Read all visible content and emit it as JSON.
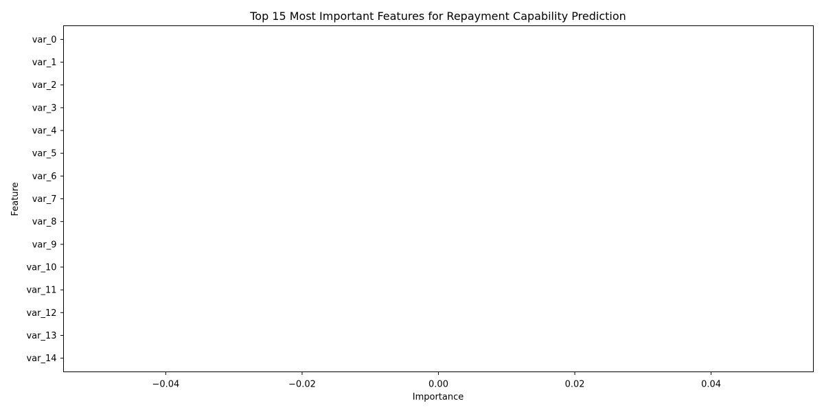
{
  "chart_data": {
    "type": "bar",
    "orientation": "horizontal",
    "title": "Top 15 Most Important Features for Repayment Capability Prediction",
    "xlabel": "Importance",
    "ylabel": "Feature",
    "categories": [
      "var_0",
      "var_1",
      "var_2",
      "var_3",
      "var_4",
      "var_5",
      "var_6",
      "var_7",
      "var_8",
      "var_9",
      "var_10",
      "var_11",
      "var_12",
      "var_13",
      "var_14"
    ],
    "values": [
      0,
      0,
      0,
      0,
      0,
      0,
      0,
      0,
      0,
      0,
      0,
      0,
      0,
      0,
      0
    ],
    "xlim": [
      -0.055,
      0.055
    ],
    "xticks": [
      -0.04,
      -0.02,
      0.0,
      0.02,
      0.04
    ],
    "xtick_labels": [
      "−0.04",
      "−0.02",
      "0.00",
      "0.02",
      "0.04"
    ],
    "grid": false,
    "colors": {
      "bar": "#1f77b4",
      "axis": "#000000"
    }
  }
}
